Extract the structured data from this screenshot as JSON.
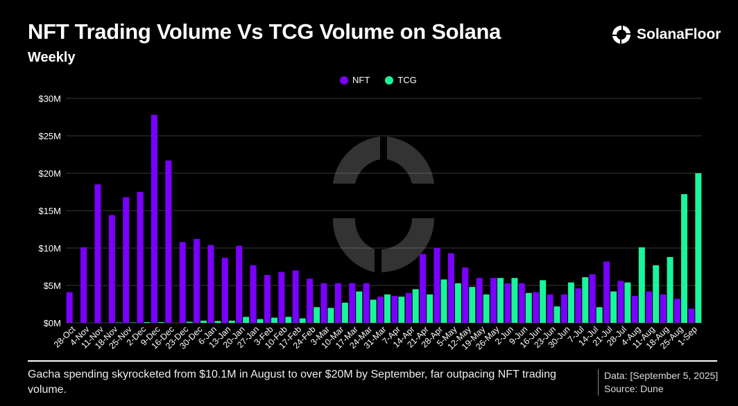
{
  "header": {
    "title": "NFT Trading Volume Vs TCG Volume on Solana",
    "subtitle": "Weekly",
    "brand": "SolanaFloor"
  },
  "footer": {
    "caption": "Gacha spending skyrocketed from $10.1M in August to over $20M by September, far outpacing NFT trading volume.",
    "data_note": "Data: [September 5, 2025]",
    "source": "Source: Dune"
  },
  "chart_data": {
    "type": "bar",
    "title": "NFT Trading Volume Vs TCG Volume on Solana",
    "subtitle": "Weekly",
    "xlabel": "",
    "ylabel": "",
    "ylim": [
      0,
      30
    ],
    "y_unit": "$M",
    "yticks": [
      "$0M",
      "$5M",
      "$10M",
      "$15M",
      "$20M",
      "$25M",
      "$30M"
    ],
    "grid": true,
    "legend": "top-center",
    "categories": [
      "28-Oct",
      "4-Nov",
      "11-Nov",
      "18-Nov",
      "25-Nov",
      "2-Dec",
      "9-Dec",
      "16-Dec",
      "23-Dec",
      "30-Dec",
      "6-Jan",
      "13-Jan",
      "20-Jan",
      "27-Jan",
      "3-Feb",
      "10-Feb",
      "17-Feb",
      "24-Feb",
      "3-Mar",
      "10-Mar",
      "17-Mar",
      "24-Mar",
      "31-Mar",
      "7-Apr",
      "14-Apr",
      "21-Apr",
      "28-Apr",
      "5-May",
      "12-May",
      "19-May",
      "26-May",
      "2-Jun",
      "9-Jun",
      "16-Jun",
      "23-Jun",
      "30-Jun",
      "7-Jul",
      "14-Jul",
      "21-Jul",
      "28-Jul",
      "4-Aug",
      "11-Aug",
      "18-Aug",
      "25-Aug",
      "1-Sep"
    ],
    "series": [
      {
        "name": "NFT",
        "color": "#7a00ff",
        "values": [
          4.1,
          10.1,
          18.5,
          14.4,
          16.8,
          17.5,
          27.8,
          21.7,
          10.8,
          11.2,
          10.4,
          8.7,
          10.3,
          7.7,
          6.4,
          6.8,
          7.0,
          5.9,
          5.3,
          5.3,
          5.3,
          5.3,
          3.5,
          3.6,
          4.0,
          9.2,
          10.0,
          9.3,
          7.4,
          6.0,
          6.0,
          5.3,
          5.3,
          4.1,
          3.8,
          3.8,
          4.6,
          6.5,
          8.2,
          5.6,
          3.6,
          4.2,
          3.8,
          3.2,
          1.9
        ]
      },
      {
        "name": "TCG",
        "color": "#19f59a",
        "values": [
          0,
          0,
          0,
          0.05,
          0.05,
          0.1,
          0.1,
          0,
          0.15,
          0.3,
          0.25,
          0.3,
          0.8,
          0.5,
          0.7,
          0.8,
          0.6,
          2.1,
          2.0,
          2.7,
          4.2,
          3.1,
          3.8,
          3.5,
          4.5,
          3.8,
          5.8,
          5.3,
          4.8,
          3.8,
          6.0,
          6.0,
          4.0,
          5.7,
          2.2,
          5.4,
          6.1,
          2.1,
          4.2,
          5.4,
          10.1,
          7.7,
          8.8,
          17.2,
          20.0
        ]
      }
    ]
  }
}
